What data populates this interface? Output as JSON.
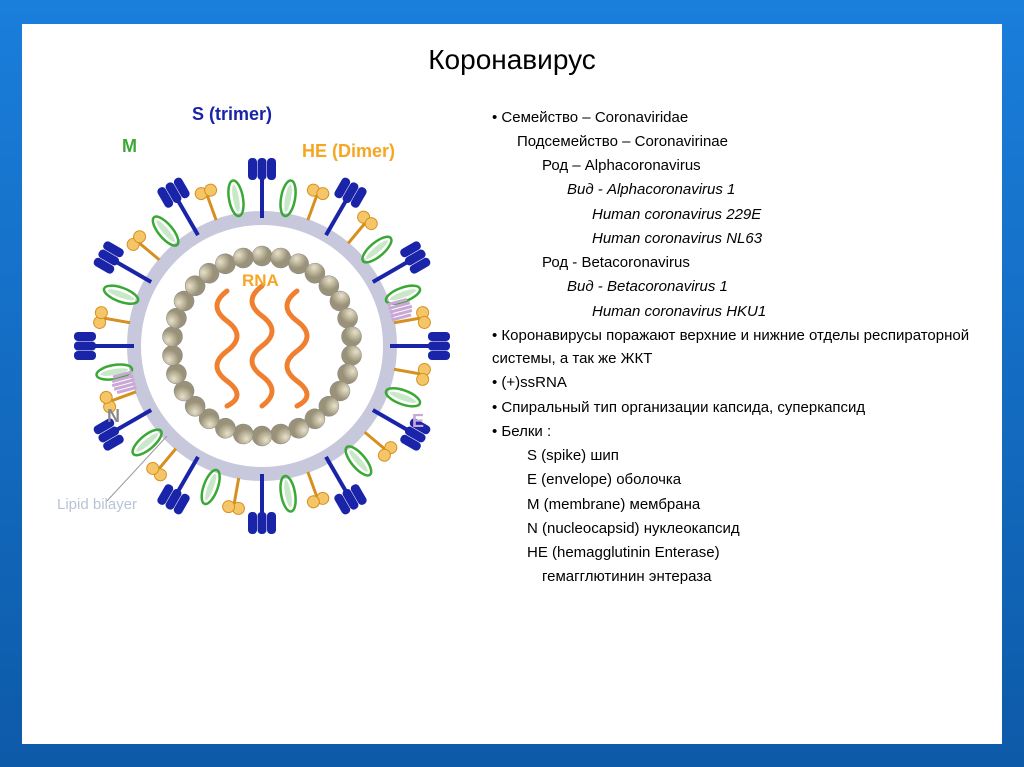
{
  "title": "Коронавирус",
  "diagram": {
    "labels": {
      "s_trimer": "S (trimer)",
      "m": "M",
      "he_dimer": "HE (Dimer)",
      "rna": "RNA",
      "n": "N",
      "e": "E",
      "lipid_bilayer": "Lipid bilayer"
    },
    "colors": {
      "s_trimer": "#1a24a8",
      "m": "#3aa835",
      "he_dimer": "#f5a623",
      "rna": "#f5a623",
      "n": "#8a8a8a",
      "e": "#c9a8d6",
      "lipid_bilayer": "#b8c4d6",
      "nucleocapsid_sphere": "#b8b09a",
      "nucleocapsid_light": "#d6cdb8",
      "membrane": "#d6d6e8",
      "m_protein": "#c8e8c8",
      "he_protein": "#f5c668"
    }
  },
  "taxonomy": [
    {
      "text": "Семейство – Coronaviridae",
      "indent": 0,
      "bullet": true
    },
    {
      "text": "Подсемейство – Coronavirinae",
      "indent": 1,
      "bullet": false
    },
    {
      "text": "Род – Alphacoronavirus",
      "indent": 2,
      "bullet": false
    },
    {
      "text": "Вид - Alphacoronavirus 1",
      "indent": 3,
      "bullet": false,
      "italic": true
    },
    {
      "text": "Human coronavirus 229E",
      "indent": 4,
      "bullet": false,
      "italic": true
    },
    {
      "text": "Human coronavirus NL63",
      "indent": 4,
      "bullet": false,
      "italic": true
    },
    {
      "text": "Род - Betacoronavirus",
      "indent": 2,
      "bullet": false
    },
    {
      "text": "Вид - Betacoronavirus 1",
      "indent": 3,
      "bullet": false,
      "italic": true
    },
    {
      "text": "Human coronavirus HKU1",
      "indent": 4,
      "bullet": false,
      "italic": true
    }
  ],
  "facts": [
    {
      "text": "Коронавирусы поражают верхние и нижние отделы респираторной системы, а так же ЖКТ",
      "bullet": true
    },
    {
      "text": "(+)ssRNA",
      "bullet": true
    },
    {
      "text": "Спиральный тип организации капсида, суперкапсид",
      "bullet": true
    },
    {
      "text": "Белки :",
      "bullet": true
    }
  ],
  "proteins": [
    {
      "text": "S (spike) шип"
    },
    {
      "text": "E (envelope) оболочка"
    },
    {
      "text": "M (membrane) мембрана"
    },
    {
      "text": "N (nucleocapsid) нуклеокапсид"
    },
    {
      "text": "HE (hemagglutinin Enterase)"
    },
    {
      "text": "гемагглютинин энтераза",
      "sub": true
    }
  ]
}
